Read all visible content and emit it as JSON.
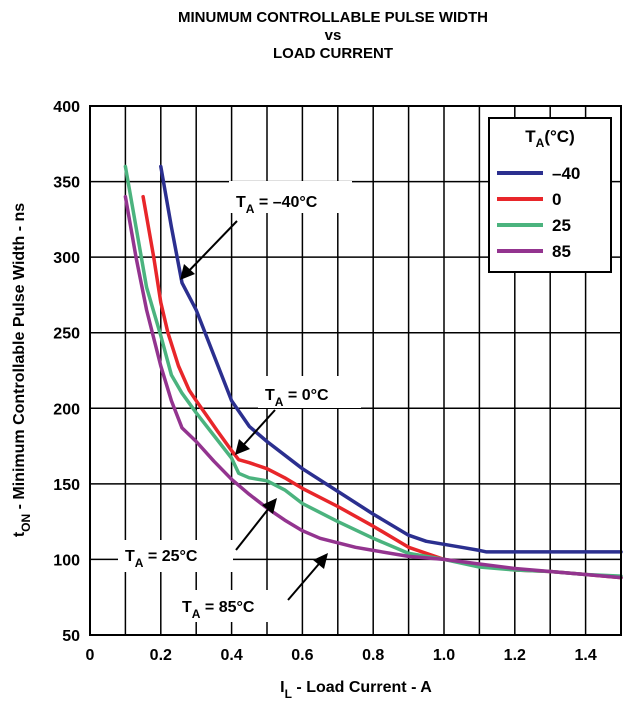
{
  "chart_data": {
    "type": "line",
    "title_lines": [
      "MINUMUM CONTROLLABLE PULSE WIDTH",
      "vs",
      "LOAD CURRENT"
    ],
    "xlabel": {
      "main": "I",
      "sub": "L",
      "rest": " - Load Current - A"
    },
    "ylabel": {
      "main": "t",
      "sub": "ON",
      "rest": " - Minimum Controllable Pulse Width - ns"
    },
    "xlim": [
      0,
      1.5
    ],
    "ylim": [
      50,
      400
    ],
    "x_ticks": [
      0,
      0.2,
      0.4,
      0.6,
      0.8,
      1.0,
      1.2,
      1.4
    ],
    "x_tick_labels": [
      "0",
      "0.2",
      "0.4",
      "0.6",
      "0.8",
      "1.0",
      "1.2",
      "1.4"
    ],
    "y_ticks": [
      50,
      100,
      150,
      200,
      250,
      300,
      350,
      400
    ],
    "y_tick_labels": [
      "50",
      "100",
      "150",
      "200",
      "250",
      "300",
      "350",
      "400"
    ],
    "x_grid_minor_step": 0.1,
    "grid": true,
    "legend": {
      "title_main": "T",
      "title_sub": "A",
      "title_rest": "(°C)",
      "placement": "top-right"
    },
    "series": [
      {
        "name": "–40",
        "color": "#2b2f8f",
        "x": [
          0.2,
          0.23,
          0.26,
          0.3,
          0.35,
          0.4,
          0.45,
          0.5,
          0.6,
          0.7,
          0.8,
          0.9,
          0.95,
          1.0,
          1.05,
          1.1,
          1.12,
          1.2,
          1.3,
          1.4,
          1.5
        ],
        "y": [
          360,
          320,
          283,
          265,
          235,
          205,
          188,
          178,
          160,
          145,
          130,
          116,
          112,
          110,
          108,
          106,
          105,
          105,
          105,
          105,
          105
        ]
      },
      {
        "name": "0",
        "color": "#e8262a",
        "x": [
          0.15,
          0.18,
          0.2,
          0.22,
          0.25,
          0.28,
          0.3,
          0.33,
          0.36,
          0.4,
          0.42,
          0.45,
          0.5,
          0.55,
          0.6,
          0.7,
          0.8,
          0.9,
          1.0,
          1.1,
          1.2,
          1.3,
          1.4,
          1.5
        ],
        "y": [
          340,
          300,
          270,
          250,
          228,
          212,
          205,
          195,
          185,
          172,
          166,
          164,
          160,
          154,
          147,
          135,
          122,
          108,
          100,
          96,
          93,
          92,
          90,
          88
        ]
      },
      {
        "name": "25",
        "color": "#4bb37e",
        "x": [
          0.1,
          0.13,
          0.16,
          0.2,
          0.23,
          0.26,
          0.3,
          0.35,
          0.4,
          0.42,
          0.45,
          0.5,
          0.55,
          0.6,
          0.7,
          0.8,
          0.9,
          1.0,
          1.1,
          1.2,
          1.3,
          1.4,
          1.5
        ],
        "y": [
          360,
          320,
          280,
          248,
          222,
          210,
          197,
          182,
          167,
          157,
          154,
          152,
          146,
          137,
          125,
          114,
          104,
          100,
          95,
          93,
          92,
          90,
          89
        ]
      },
      {
        "name": "85",
        "color": "#93348f",
        "x": [
          0.1,
          0.13,
          0.16,
          0.2,
          0.23,
          0.26,
          0.3,
          0.35,
          0.4,
          0.45,
          0.5,
          0.55,
          0.6,
          0.65,
          0.7,
          0.75,
          0.8,
          0.9,
          1.0,
          1.1,
          1.2,
          1.3,
          1.4,
          1.5
        ],
        "y": [
          340,
          300,
          265,
          228,
          205,
          187,
          178,
          165,
          153,
          143,
          134,
          126,
          119,
          114,
          111,
          108,
          106,
          102,
          100,
          97,
          94,
          92,
          90,
          88
        ]
      }
    ],
    "annotations": [
      {
        "main": "T",
        "sub": "A",
        "rest": " = –40°C"
      },
      {
        "main": "T",
        "sub": "A",
        "rest": " = 0°C"
      },
      {
        "main": "T",
        "sub": "A",
        "rest": " = 25°C"
      },
      {
        "main": "T",
        "sub": "A",
        "rest": " = 85°C"
      }
    ]
  }
}
